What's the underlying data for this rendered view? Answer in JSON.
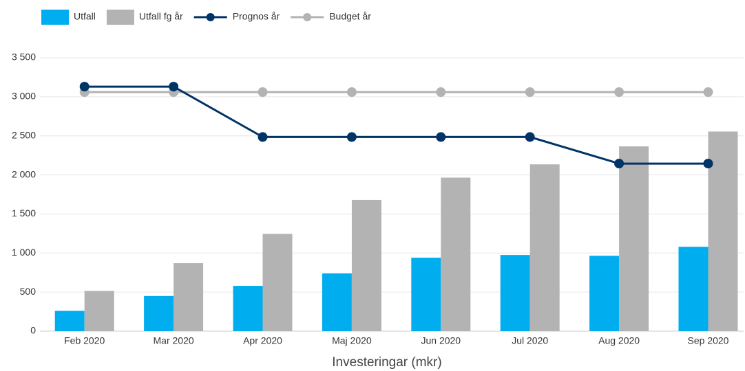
{
  "chart_data": {
    "type": "bar_line",
    "categories": [
      "Feb 2020",
      "Mar 2020",
      "Apr 2020",
      "Maj 2020",
      "Jun 2020",
      "Jul 2020",
      "Aug 2020",
      "Sep 2020"
    ],
    "series": [
      {
        "name": "Utfall",
        "type": "bar",
        "color": "#00aeef",
        "values": [
          260,
          450,
          580,
          740,
          940,
          975,
          965,
          1080
        ]
      },
      {
        "name": "Utfall fg år",
        "type": "bar",
        "color": "#b3b3b3",
        "values": [
          515,
          870,
          1245,
          1680,
          1965,
          2135,
          2365,
          2555
        ]
      },
      {
        "name": "Prognos år",
        "type": "line",
        "color": "#003366",
        "values": [
          3130,
          3130,
          2485,
          2485,
          2485,
          2485,
          2145,
          2145
        ]
      },
      {
        "name": "Budget år",
        "type": "line",
        "color": "#b3b3b3",
        "values": [
          3060,
          3060,
          3060,
          3060,
          3060,
          3060,
          3060,
          3060
        ]
      }
    ],
    "x_label": "Investeringar (mkr)",
    "ylim": [
      0,
      3500
    ],
    "yticks": [
      0,
      500,
      {
        "value": 1000,
        "label": "1 000"
      },
      {
        "value": 1500,
        "label": "1 500"
      },
      {
        "value": 2000,
        "label": "2 000"
      },
      {
        "value": 2500,
        "label": "2 500"
      },
      {
        "value": 3000,
        "label": "3 000"
      },
      {
        "value": 3500,
        "label": "3 500"
      }
    ],
    "grid": true,
    "legend": "top"
  }
}
